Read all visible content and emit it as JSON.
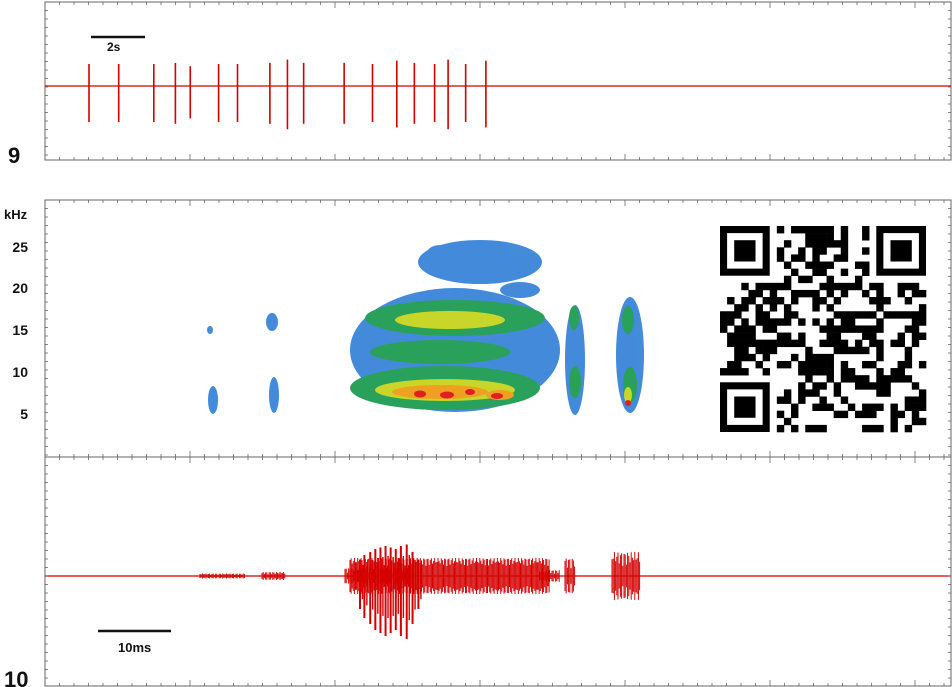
{
  "panels": [
    {
      "label": "9",
      "type": "line",
      "scale_bar": {
        "text": "2s"
      },
      "chart_data": {
        "type": "line",
        "description": "pulse train (oscillogram); spike times in seconds",
        "x": [
          0.0,
          1.1,
          2.4,
          3.2,
          3.75,
          4.8,
          5.5,
          6.7,
          7.35,
          7.95,
          9.45,
          10.5,
          11.4,
          12.05,
          12.8,
          13.3,
          13.95,
          14.7
        ],
        "spike_amplitude": [
          1.0,
          1.0,
          1.0,
          1.05,
          0.9,
          1.0,
          1.0,
          1.05,
          1.2,
          1.05,
          1.05,
          1.0,
          1.15,
          1.05,
          1.0,
          1.2,
          1.0,
          1.15
        ],
        "color": "#d40000"
      }
    },
    {
      "label": "",
      "type": "heatmap",
      "y_unit": "kHz",
      "y_ticks": [
        "25",
        "20",
        "15",
        "10",
        "5"
      ],
      "chart_data": {
        "type": "heatmap",
        "ylabel": "kHz",
        "yticks": [
          25,
          20,
          15,
          10,
          5
        ],
        "ylim": [
          0,
          29
        ],
        "colormap": [
          "#ffffff",
          "#2f7fd6",
          "#2aa15a",
          "#c8d62a",
          "#f0a020",
          "#e02020"
        ]
      }
    },
    {
      "label": "10",
      "type": "line",
      "scale_bar": {
        "text": "10ms"
      },
      "chart_data": {
        "type": "line",
        "description": "single call waveform; pulse envelope over time (ms)",
        "main_pulses_ms": [
          16.0,
          16.6,
          17.4,
          18.1,
          18.8,
          19.5,
          20.2,
          20.9,
          21.6,
          22.4,
          23.2,
          24.0
        ],
        "main_pulse_amplitude": [
          0.55,
          0.7,
          0.8,
          0.9,
          0.95,
          1.0,
          0.95,
          0.9,
          1.0,
          1.05,
          0.8,
          0.55
        ],
        "color": "#d40000"
      }
    }
  ]
}
